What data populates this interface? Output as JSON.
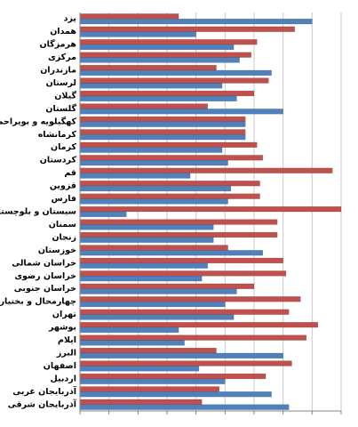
{
  "chart_data": {
    "type": "hbar",
    "categories": [
      "یزد",
      "همدان",
      "هرمزگان",
      "مرکزی",
      "مازندران",
      "لرستان",
      "گیلان",
      "گلستان",
      "کهگیلویه و بویراحمد",
      "کرمانشاه",
      "کرمان",
      "کردستان",
      "قم",
      "قزوین",
      "فارس",
      "سیستان و بلوچستان",
      "سمنان",
      "زنجان",
      "خوزستان",
      "خراسان شمالی",
      "خراسان رضوی",
      "خراسان جنوبی",
      "چهارمحال و بختیاری",
      "تهران",
      "بوشهر",
      "ایلام",
      "البرز",
      "اصفهان",
      "اردبیل",
      "آذربایجان غربی",
      "آذربایجان شرقی"
    ],
    "series": [
      {
        "color": "#c0504d",
        "values": [
          3.4,
          7.4,
          6.1,
          5.9,
          4.7,
          6.5,
          6.0,
          4.4,
          5.7,
          5.7,
          6.1,
          6.3,
          8.7,
          6.2,
          6.2,
          9.0,
          6.8,
          6.8,
          5.1,
          7.0,
          7.1,
          6.0,
          7.6,
          7.2,
          8.2,
          7.8,
          4.7,
          7.3,
          6.4,
          4.8,
          4.2
        ]
      },
      {
        "color": "#4f81bd",
        "values": [
          8.0,
          4.0,
          5.3,
          5.5,
          6.6,
          4.9,
          5.4,
          7.0,
          5.7,
          5.7,
          4.9,
          5.1,
          3.8,
          5.2,
          5.1,
          1.6,
          4.6,
          4.6,
          6.3,
          4.4,
          4.2,
          5.4,
          5.0,
          5.3,
          3.4,
          3.6,
          7.0,
          4.1,
          5.0,
          6.6,
          7.2
        ]
      }
    ],
    "xlim": [
      0,
      9
    ],
    "xticks": [
      0,
      1,
      2,
      3,
      4,
      5,
      6,
      7,
      8,
      9
    ],
    "grid": true
  }
}
